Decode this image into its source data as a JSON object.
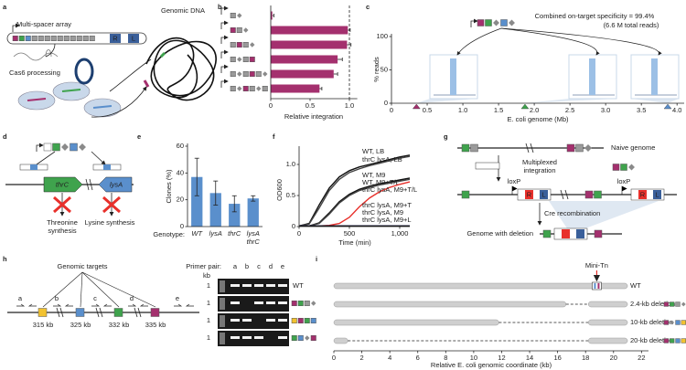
{
  "panel_labels": [
    "a",
    "b",
    "c",
    "d",
    "e",
    "f",
    "g",
    "h",
    "i"
  ],
  "diagrams": {
    "a": {
      "array_label": "Multi-spacer array",
      "genome_label": "Genomic DNA",
      "processing_label": "Cas6 processing",
      "right_end": "R",
      "left_end": "L"
    },
    "d": {
      "gene1": "thrC",
      "gene2": "lysA",
      "pathway1": "Threonine synthesis",
      "pathway2": "Lysine synthesis"
    },
    "g": {
      "naive": "Naive genome",
      "step1": "Multiplexed integration",
      "lox1": "loxP",
      "lox2": "loxP",
      "r1": "R",
      "l1": "L",
      "r2": "R",
      "l2": "L",
      "step2": "Cre recombination",
      "result": "Genome with deletion"
    },
    "h": {
      "title": "Genomic targets",
      "primers": [
        "a",
        "b",
        "c",
        "d",
        "e"
      ],
      "positions": [
        "315 kb",
        "325 kb",
        "332 kb",
        "335 kb"
      ],
      "gel_header": "Primer pair:",
      "gel_lanes": [
        "a",
        "b",
        "c",
        "d",
        "e"
      ],
      "unit": "kb",
      "size_marks": [
        1,
        1,
        1,
        1
      ],
      "strain": "WT"
    }
  },
  "chart_data": [
    {
      "type": "hbar",
      "xlabel": "Relative integration",
      "values": [
        0.02,
        0.98,
        0.97,
        0.85,
        0.8,
        0.62
      ],
      "errors": [
        0.02,
        0.03,
        0.05,
        0.06,
        0.05,
        0.03
      ],
      "reference_line": 1,
      "color": "#a4306e",
      "xlim": [
        0,
        1.1
      ],
      "xticks": [
        0,
        0.5,
        {
          "value": 1,
          "label": "1.0"
        }
      ]
    },
    {
      "type": "scatter",
      "ylabel": "% reads",
      "xlabel": "E. coli genome (Mb)",
      "annotation": "Combined on-target specificity = 99.4%",
      "annotation_sub": "(6.6 M total reads)",
      "x": [
        0.35,
        1.87,
        3.87
      ],
      "values": [
        0,
        0,
        0
      ],
      "colors": [
        "#a4306e",
        "#3fa34d",
        "#5a8fcc"
      ],
      "xlim": [
        0,
        4.1
      ],
      "xticks": [
        0,
        0.5,
        {
          "value": 1,
          "label": "1.0"
        },
        1.5,
        {
          "value": 2,
          "label": "2.0"
        },
        2.5,
        {
          "value": 3,
          "label": "3.0"
        },
        3.5,
        {
          "value": 4,
          "label": "4.0"
        }
      ],
      "ylim": [
        0,
        100
      ],
      "yticks": [
        0,
        50,
        100
      ]
    },
    {
      "type": "bar",
      "ylabel": "Clones (%)",
      "xlabel": "Genotype:",
      "categories": [
        "WT",
        "lysA",
        "thrC",
        "lysA thrC"
      ],
      "values": [
        37,
        25,
        17,
        21
      ],
      "errors": [
        14,
        9,
        6,
        2
      ],
      "color": "#5a8fcc",
      "ylim": [
        0,
        60
      ],
      "yticks": [
        0,
        20,
        40,
        60
      ]
    },
    {
      "type": "line",
      "ylabel": "OD600",
      "xlabel": "Time (min)",
      "x": [
        0,
        100,
        200,
        300,
        400,
        500,
        600,
        700,
        800,
        900,
        1000,
        1100
      ],
      "xlim": [
        0,
        1100
      ],
      "xticks": [
        0,
        500,
        {
          "value": 1000,
          "label": "1,000"
        }
      ],
      "ylim": [
        0,
        1.25
      ],
      "yticks": [
        0,
        0.5,
        {
          "value": 1,
          "label": "1.0"
        }
      ],
      "series": [
        {
          "name": "WT, LB",
          "color": "#111111",
          "values": [
            0.01,
            0.05,
            0.35,
            0.62,
            0.8,
            0.9,
            0.96,
            1.0,
            1.04,
            1.08,
            1.12,
            1.15
          ]
        },
        {
          "name": "thrC lysA, LB",
          "color": "#444444",
          "values": [
            0.01,
            0.04,
            0.3,
            0.58,
            0.76,
            0.87,
            0.93,
            0.98,
            1.02,
            1.06,
            1.1,
            1.13
          ]
        },
        {
          "name": "WT, M9",
          "color": "#111111",
          "values": [
            0.01,
            0.01,
            0.06,
            0.22,
            0.4,
            0.52,
            0.6,
            0.65,
            0.69,
            0.72,
            0.75,
            0.78
          ]
        },
        {
          "name": "WT, M9+T/L",
          "color": "#444444",
          "values": [
            0.01,
            0.01,
            0.05,
            0.2,
            0.38,
            0.5,
            0.58,
            0.63,
            0.67,
            0.7,
            0.73,
            0.76
          ]
        },
        {
          "name": "thrC lysA, M9+T/L",
          "color": "#e8302b",
          "values": [
            0.01,
            0.01,
            0.01,
            0.02,
            0.05,
            0.15,
            0.32,
            0.46,
            0.56,
            0.63,
            0.68,
            0.72
          ]
        },
        {
          "name": "thrC lysA, M9+T",
          "color": "#333333",
          "values": [
            0.01,
            0.01,
            0.01,
            0.01,
            0.01,
            0.01,
            0.01,
            0.01,
            0.01,
            0.01,
            0.01,
            0.01
          ]
        },
        {
          "name": "thrC lysA, M9",
          "color": "#2233cc",
          "values": [
            0.01,
            0.01,
            0.01,
            0.01,
            0.01,
            0.01,
            0.01,
            0.01,
            0.01,
            0.01,
            0.01,
            0.01
          ]
        },
        {
          "name": "thrC lysA, M9+L",
          "color": "#111111",
          "values": [
            0.01,
            0.01,
            0.01,
            0.01,
            0.01,
            0.01,
            0.01,
            0.01,
            0.01,
            0.01,
            0.01,
            0.01
          ]
        }
      ]
    },
    {
      "type": "hbar_segments",
      "xlabel": "Relative E. coli genomic coordinate (kb)",
      "tn_label": "Mini-Tn",
      "tn_position": 18.8,
      "categories": [
        "WT",
        "2.4-kb deletion",
        "10-kb deletion",
        "20-kb deletion"
      ],
      "values": [
        21,
        16.6,
        11.8,
        1
      ],
      "right_segment": [
        18.2,
        21
      ],
      "xlim": [
        0,
        22.5
      ],
      "xticks": [
        0,
        2,
        4,
        6,
        8,
        10,
        12,
        14,
        16,
        18,
        20,
        22
      ]
    }
  ]
}
